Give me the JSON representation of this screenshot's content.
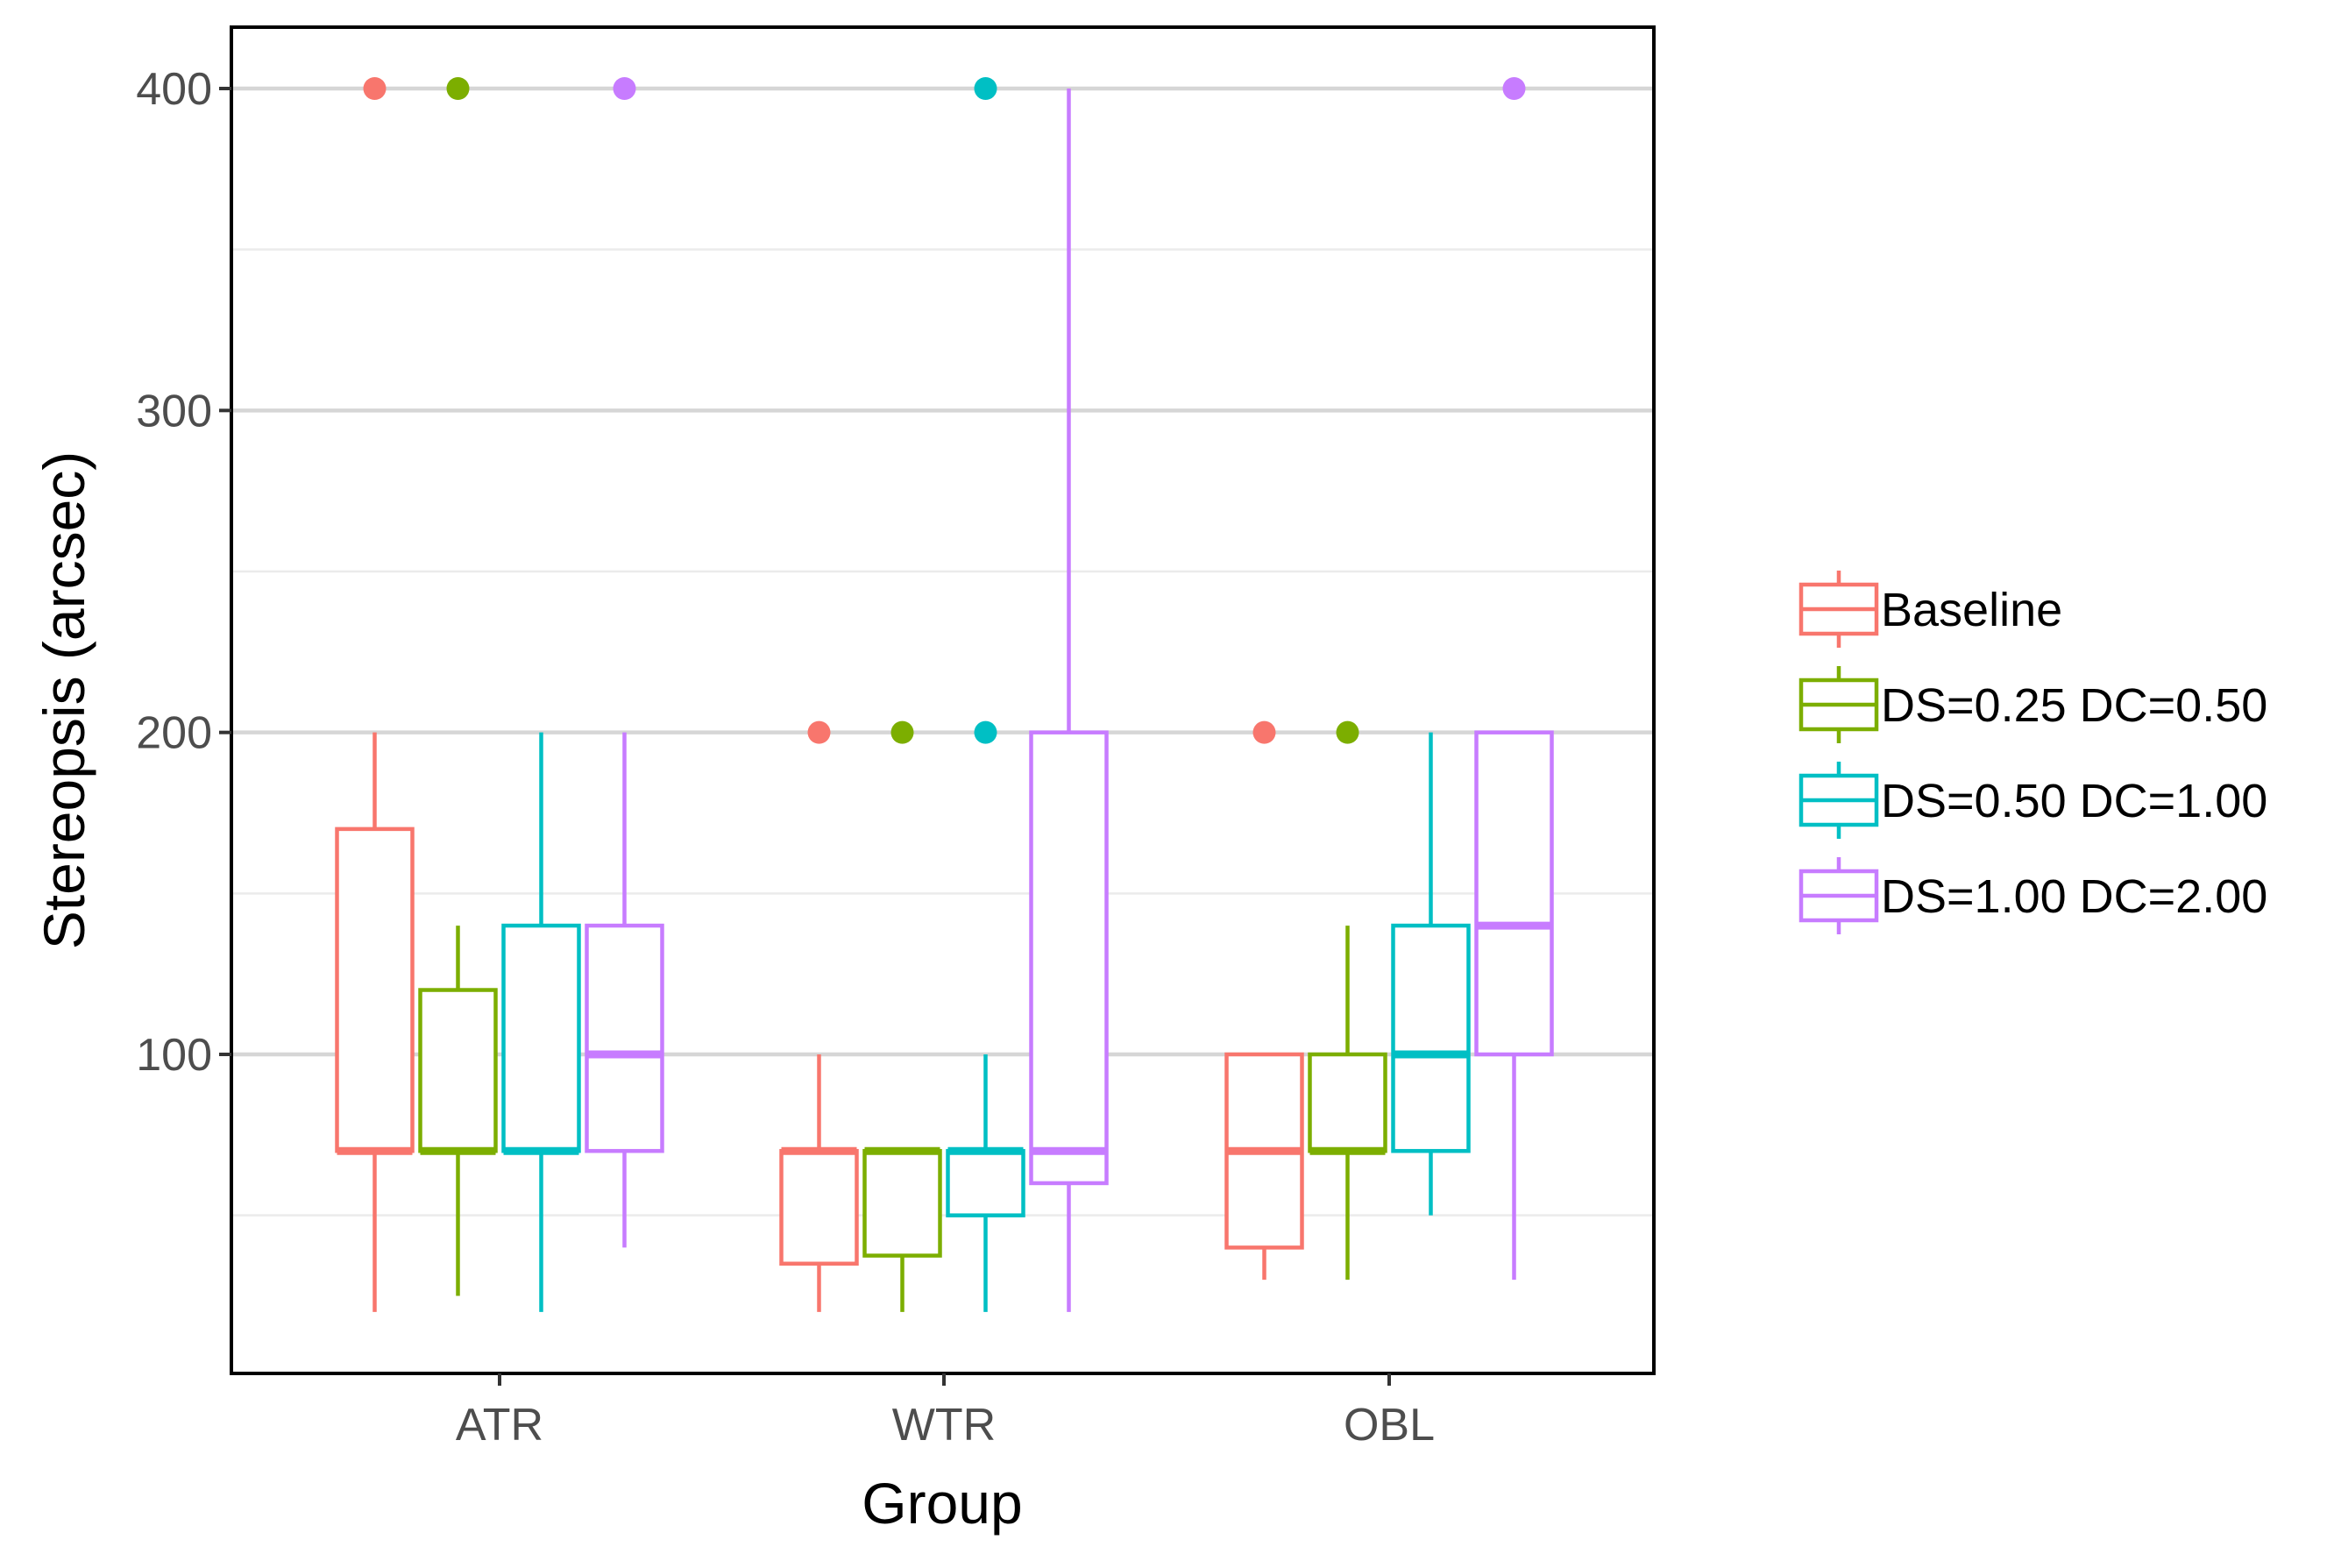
{
  "chart_data": {
    "type": "boxplot",
    "title": "",
    "xlabel": "Group",
    "ylabel": "Stereopsis (arcsec)",
    "ylim": [
      0,
      420
    ],
    "yticks": [
      100,
      200,
      300,
      400
    ],
    "ytick_labels": [
      "100",
      "200",
      "300",
      "400"
    ],
    "minor_gridlines": [
      50,
      150,
      250,
      350
    ],
    "grid": true,
    "legend_position": "right",
    "categories": [
      "ATR",
      "WTR",
      "OBL"
    ],
    "series": [
      {
        "name": "Baseline",
        "color": "#F8766D",
        "boxes": [
          {
            "group": "ATR",
            "min": 20,
            "q1": 70,
            "median": 70,
            "q3": 170,
            "max": 200,
            "outliers": [
              400
            ]
          },
          {
            "group": "WTR",
            "min": 20,
            "q1": 35,
            "median": 70,
            "q3": 70,
            "max": 100,
            "outliers": [
              200
            ]
          },
          {
            "group": "OBL",
            "min": 30,
            "q1": 40,
            "median": 70,
            "q3": 100,
            "max": 100,
            "outliers": [
              200
            ]
          }
        ]
      },
      {
        "name": "DS=0.25 DC=0.50",
        "color": "#7CAE00",
        "boxes": [
          {
            "group": "ATR",
            "min": 25,
            "q1": 70,
            "median": 70,
            "q3": 120,
            "max": 140,
            "outliers": [
              400
            ]
          },
          {
            "group": "WTR",
            "min": 20,
            "q1": 37.5,
            "median": 70,
            "q3": 70,
            "max": 70,
            "outliers": [
              200
            ]
          },
          {
            "group": "OBL",
            "min": 30,
            "q1": 70,
            "median": 70,
            "q3": 100,
            "max": 140,
            "outliers": [
              200
            ]
          }
        ]
      },
      {
        "name": "DS=0.50 DC=1.00",
        "color": "#00BFC4",
        "boxes": [
          {
            "group": "ATR",
            "min": 20,
            "q1": 70,
            "median": 70,
            "q3": 140,
            "max": 200,
            "outliers": []
          },
          {
            "group": "WTR",
            "min": 20,
            "q1": 50,
            "median": 70,
            "q3": 70,
            "max": 100,
            "outliers": [
              200,
              400
            ]
          },
          {
            "group": "OBL",
            "min": 50,
            "q1": 70,
            "median": 100,
            "q3": 140,
            "max": 200,
            "outliers": []
          }
        ]
      },
      {
        "name": "DS=1.00 DC=2.00",
        "color": "#C77CFF",
        "boxes": [
          {
            "group": "ATR",
            "min": 40,
            "q1": 70,
            "median": 100,
            "q3": 140,
            "max": 200,
            "outliers": [
              400
            ]
          },
          {
            "group": "WTR",
            "min": 20,
            "q1": 60,
            "median": 70,
            "q3": 200,
            "max": 400,
            "outliers": []
          },
          {
            "group": "OBL",
            "min": 30,
            "q1": 100,
            "median": 140,
            "q3": 200,
            "max": 200,
            "outliers": [
              400
            ]
          }
        ]
      }
    ]
  }
}
